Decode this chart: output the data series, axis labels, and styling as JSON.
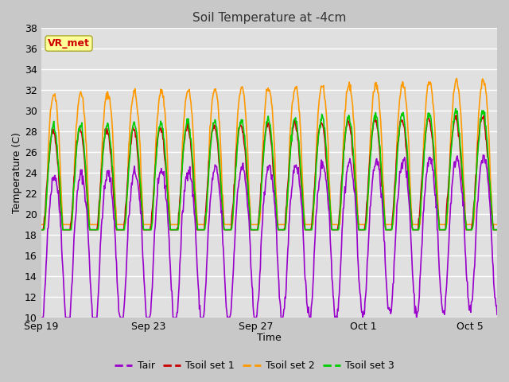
{
  "title": "Soil Temperature at -4cm",
  "xlabel": "Time",
  "ylabel": "Temperature (C)",
  "ylim": [
    10,
    38
  ],
  "yticks": [
    10,
    12,
    14,
    16,
    18,
    20,
    22,
    24,
    26,
    28,
    30,
    32,
    34,
    36,
    38
  ],
  "xtick_labels": [
    "Sep 19",
    "Sep 23",
    "Sep 27",
    "Oct 1",
    "Oct 5"
  ],
  "colors": {
    "Tair": "#9900cc",
    "Tsoil1": "#cc0000",
    "Tsoil2": "#ff9900",
    "Tsoil3": "#00cc00"
  },
  "legend_labels": [
    "Tair",
    "Tsoil set 1",
    "Tsoil set 2",
    "Tsoil set 3"
  ],
  "annotation_text": "VR_met",
  "annotation_color": "#cc0000",
  "annotation_bg": "#ffff99",
  "fig_bg": "#c8c8c8",
  "plot_bg": "#e0e0e0",
  "n_days": 17,
  "n_per_day": 48,
  "seed": 42
}
